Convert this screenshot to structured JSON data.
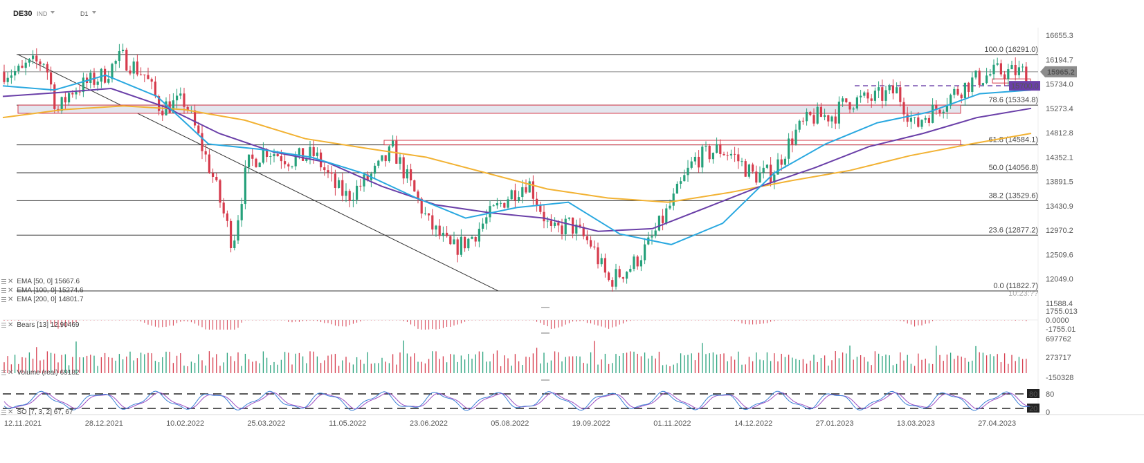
{
  "header": {
    "symbol": "DE30",
    "market": "IND",
    "interval": "D1"
  },
  "legend": {
    "ema50": "EMA [50, 0] 15667.6",
    "ema100": "EMA [100, 0] 15274.6",
    "ema200": "EMA [200, 0] 14801.7",
    "bears": "Bears [13] 12.90469",
    "volume": "Volume (real) 69182",
    "so": "SO [7, 3, 2] 67, 67"
  },
  "watermark": "10:23:??",
  "colors": {
    "ema50": "#29a8e0",
    "ema100": "#6a3fa8",
    "ema200": "#f2b233",
    "bull": "#26a17b",
    "bear": "#d63b4c",
    "price_tag": "#8c8c8c",
    "level_tag": "#6a3fa8",
    "zone_fill": "#e4e6ee",
    "zone_border": "#d63b4c",
    "so_k": "#3a7fd6",
    "so_d": "#9b4fc3"
  },
  "chart_data": {
    "type": "candlestick",
    "symbol": "DE30",
    "timeframe": "D1",
    "x_labels": [
      "12.11.2021",
      "28.12.2021",
      "10.02.2022",
      "25.03.2022",
      "11.05.2022",
      "23.06.2022",
      "05.08.2022",
      "19.09.2022",
      "01.11.2022",
      "14.12.2022",
      "27.01.2023",
      "13.03.2023",
      "27.04.2023"
    ],
    "y_ticks": [
      16655.3,
      16194.7,
      15734.0,
      15273.4,
      14812.8,
      14352.1,
      13891.5,
      13430.9,
      12970.2,
      12509.6,
      12049.0,
      11588.4
    ],
    "current_price": "15965.2",
    "marked_level": "15700.0",
    "fibonacci": [
      {
        "label": "100.0 (16291.0)",
        "value": 16291.0
      },
      {
        "label": "78.6 (15334.8)",
        "value": 15334.8
      },
      {
        "label": "61.8 (14584.1)",
        "value": 14584.1
      },
      {
        "label": "50.0 (14056.8)",
        "value": 14056.8
      },
      {
        "label": "38.2 (13529.6)",
        "value": 13529.6
      },
      {
        "label": "23.6 (12877.2)",
        "value": 12877.2
      },
      {
        "label": "0.0 (11822.7)",
        "value": 11822.7
      }
    ],
    "price_path": [
      [
        "12.11.2021",
        16050
      ],
      [
        "2021-11-24",
        16180
      ],
      [
        "2021-12-01",
        15200
      ],
      [
        "2021-12-08",
        15600
      ],
      [
        "28.12.2021",
        15900
      ],
      [
        "2022-01-05",
        16250
      ],
      [
        "2022-01-18",
        15900
      ],
      [
        "2022-01-26",
        15300
      ],
      [
        "10.02.2022",
        15400
      ],
      [
        "2022-02-24",
        14000
      ],
      [
        "2022-03-07",
        12700
      ],
      [
        "2022-03-15",
        14200
      ],
      [
        "25.03.2022",
        14500
      ],
      [
        "2022-04-08",
        14300
      ],
      [
        "2022-04-21",
        14400
      ],
      [
        "2022-05-02",
        13800
      ],
      [
        "11.05.2022",
        13600
      ],
      [
        "2022-05-25",
        14100
      ],
      [
        "2022-06-03",
        14500
      ],
      [
        "2022-06-10",
        14000
      ],
      [
        "23.06.2022",
        13100
      ],
      [
        "2022-07-05",
        12600
      ],
      [
        "2022-07-15",
        12800
      ],
      [
        "2022-07-26",
        13250
      ],
      [
        "05.08.2022",
        13650
      ],
      [
        "2022-08-16",
        13900
      ],
      [
        "2022-08-29",
        12900
      ],
      [
        "2022-09-07",
        13100
      ],
      [
        "19.09.2022",
        12700
      ],
      [
        "2022-09-29",
        12000
      ],
      [
        "2022-10-12",
        12300
      ],
      [
        "2022-10-21",
        12700
      ],
      [
        "01.11.2022",
        13500
      ],
      [
        "2022-11-15",
        14300
      ],
      [
        "2022-11-28",
        14500
      ],
      [
        "2022-12-06",
        14400
      ],
      [
        "14.12.2022",
        14000
      ],
      [
        "2022-12-28",
        14050
      ],
      [
        "2023-01-09",
        14800
      ],
      [
        "2023-01-18",
        15100
      ],
      [
        "27.01.2023",
        15150
      ],
      [
        "2023-02-06",
        15400
      ],
      [
        "2023-02-20",
        15450
      ],
      [
        "2023-03-06",
        15600
      ],
      [
        "13.03.2023",
        14900
      ],
      [
        "2023-03-20",
        15100
      ],
      [
        "2023-03-29",
        15300
      ],
      [
        "2023-04-06",
        15550
      ],
      [
        "2023-04-17",
        15800
      ],
      [
        "27.04.2023",
        15960
      ]
    ],
    "ema_50": [
      15700,
      15620,
      15900,
      15500,
      14600,
      14500,
      14350,
      14050,
      13600,
      13200,
      13400,
      13500,
      12900,
      12700,
      13100,
      14050,
      14600,
      15000,
      15200,
      15550,
      15620
    ],
    "ema_100": [
      15500,
      15570,
      15650,
      15300,
      14800,
      14450,
      14250,
      13800,
      13450,
      13300,
      13200,
      12950,
      13000,
      13400,
      13800,
      14150,
      14550,
      14800,
      15100,
      15274
    ],
    "ema_200": [
      15100,
      15250,
      15320,
      15250,
      15050,
      14700,
      14520,
      14350,
      14050,
      13750,
      13580,
      13500,
      13680,
      13900,
      14100,
      14380,
      14600,
      14801
    ],
    "sub_panels": {
      "bears": {
        "name": "Bears [13]",
        "value": "12.90469",
        "ticks": [
          "1755.013",
          "0.0000",
          "-1755.01"
        ]
      },
      "volume": {
        "name": "Volume (real)",
        "value": "69182",
        "ticks": [
          "697762",
          "273717",
          "-150328"
        ]
      },
      "stochastic": {
        "name": "SO [7, 3, 2]",
        "values": [
          "67",
          "67"
        ],
        "levels": [
          "80",
          "20"
        ],
        "ticks": [
          "80",
          "0"
        ]
      }
    }
  }
}
